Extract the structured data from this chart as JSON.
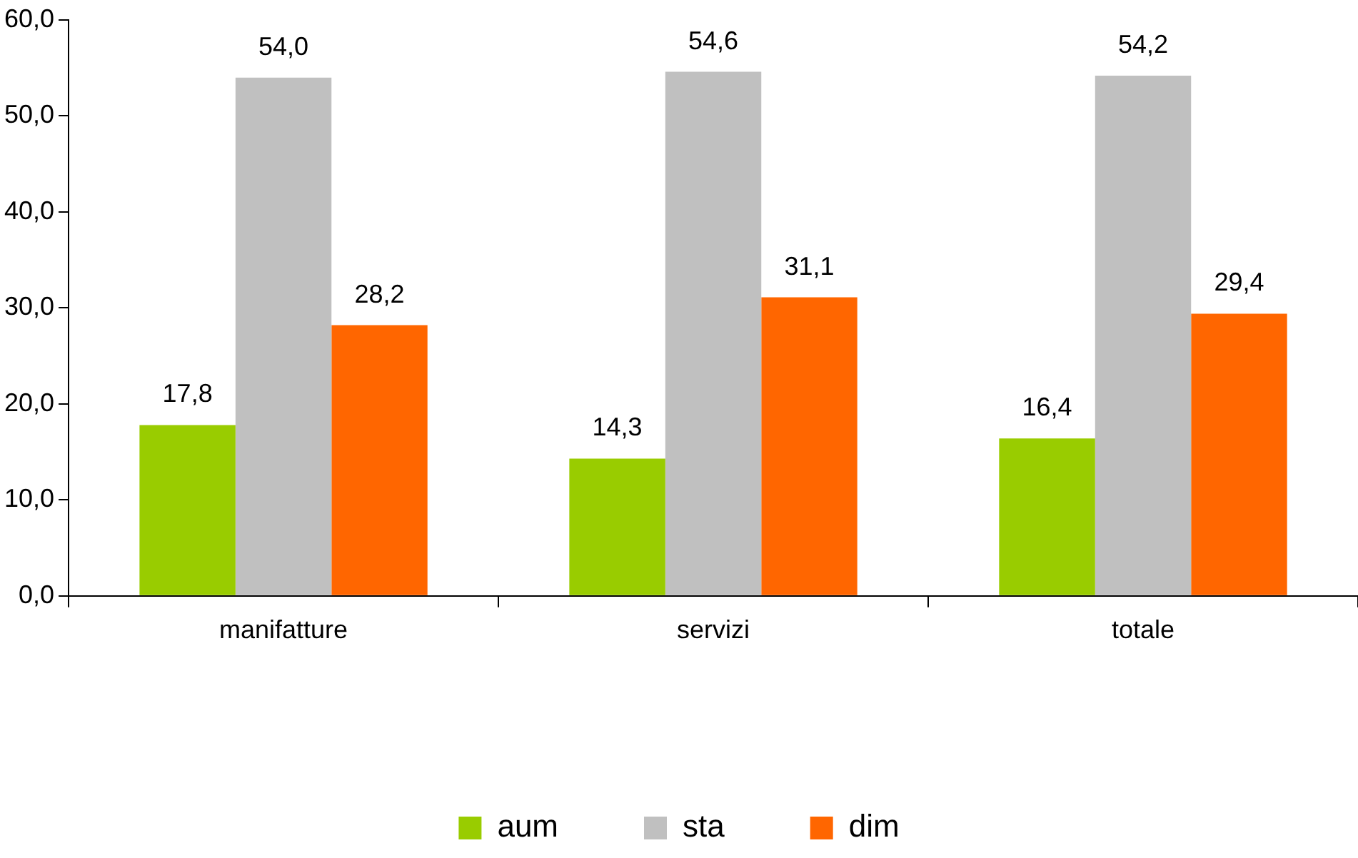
{
  "chart_data": {
    "type": "bar",
    "categories": [
      "manifatture",
      "servizi",
      "totale"
    ],
    "series": [
      {
        "name": "aum",
        "color": "#99cc00",
        "values": [
          17.8,
          14.3,
          16.4
        ],
        "value_labels": [
          "17,8",
          "14,3",
          "16,4"
        ]
      },
      {
        "name": "sta",
        "color": "#c0c0c0",
        "values": [
          54.0,
          54.6,
          54.2
        ],
        "value_labels": [
          "54,0",
          "54,6",
          "54,2"
        ]
      },
      {
        "name": "dim",
        "color": "#ff6600",
        "values": [
          28.2,
          31.1,
          29.4
        ],
        "value_labels": [
          "28,2",
          "31,1",
          "29,4"
        ]
      }
    ],
    "ylim": [
      0,
      60
    ],
    "yticks": [
      {
        "value": 0,
        "label": "0,0"
      },
      {
        "value": 10,
        "label": "10,0"
      },
      {
        "value": 20,
        "label": "20,0"
      },
      {
        "value": 30,
        "label": "30,0"
      },
      {
        "value": 40,
        "label": "40,0"
      },
      {
        "value": 50,
        "label": "50,0"
      },
      {
        "value": 60,
        "label": "60,0"
      }
    ],
    "grid": false,
    "legend": "bottom"
  }
}
